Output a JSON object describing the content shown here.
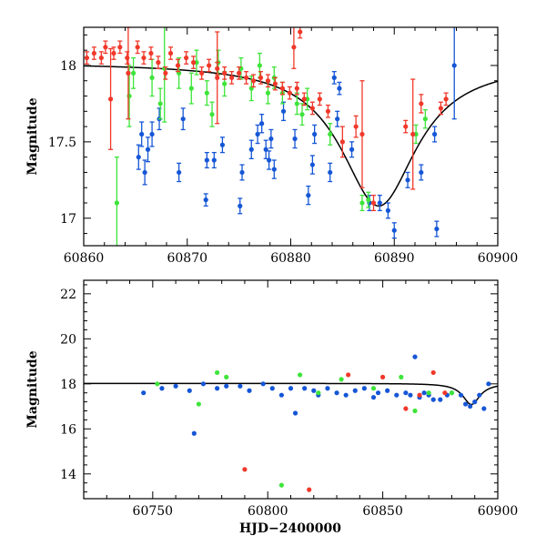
{
  "colors": {
    "blue": "#1556d6",
    "green": "#3ee43a",
    "red": "#f0382a",
    "model": "#000000"
  },
  "chart_data": [
    {
      "type": "scatter",
      "panel": "top",
      "xlabel": "",
      "ylabel": "Magnitude",
      "xlim": [
        60860,
        60900
      ],
      "ylim": [
        18.25,
        16.82
      ],
      "y_inverted": true,
      "xticks": [
        60860,
        60870,
        60880,
        60890,
        60900
      ],
      "yticks": [
        17,
        17.5,
        18
      ],
      "ytick_labels": [
        "17",
        "17.5",
        "18"
      ],
      "model": {
        "peak_x": 60888.5,
        "peak_y": 17.08,
        "baseline_y": 18.02
      },
      "series": [
        {
          "color": "blue",
          "points": [
            [
              60865.3,
              17.4,
              0.08
            ],
            [
              60865.6,
              17.55,
              0.08
            ],
            [
              60865.9,
              17.3,
              0.08
            ],
            [
              60866.2,
              17.45,
              0.08
            ],
            [
              60866.6,
              17.55,
              0.08
            ],
            [
              60867.3,
              17.65,
              0.07
            ],
            [
              60869.2,
              17.3,
              0.06
            ],
            [
              60869.6,
              17.65,
              0.07
            ],
            [
              60871.8,
              17.12,
              0.04
            ],
            [
              60871.9,
              17.38,
              0.05
            ],
            [
              60872.6,
              17.38,
              0.05
            ],
            [
              60873.4,
              17.48,
              0.05
            ],
            [
              60875.1,
              17.08,
              0.05
            ],
            [
              60875.3,
              17.3,
              0.05
            ],
            [
              60876.2,
              17.45,
              0.06
            ],
            [
              60876.8,
              17.55,
              0.06
            ],
            [
              60877.2,
              17.62,
              0.06
            ],
            [
              60877.6,
              17.45,
              0.06
            ],
            [
              60877.9,
              17.38,
              0.06
            ],
            [
              60878.1,
              17.52,
              0.06
            ],
            [
              60878.4,
              17.32,
              0.06
            ],
            [
              60879.3,
              17.7,
              0.06
            ],
            [
              60880.4,
              17.52,
              0.06
            ],
            [
              60881.7,
              17.15,
              0.06
            ],
            [
              60882.1,
              17.35,
              0.06
            ],
            [
              60882.3,
              17.55,
              0.06
            ],
            [
              60883.8,
              17.3,
              0.06
            ],
            [
              60884.2,
              17.92,
              0.04
            ],
            [
              60884.5,
              17.65,
              0.05
            ],
            [
              60884.7,
              17.85,
              0.04
            ],
            [
              60885.9,
              17.45,
              0.05
            ],
            [
              60887.6,
              17.1,
              0.05
            ],
            [
              60888.6,
              17.1,
              0.05
            ],
            [
              60889.4,
              17.05,
              0.05
            ],
            [
              60890.0,
              16.92,
              0.05
            ],
            [
              60891.3,
              17.25,
              0.05
            ],
            [
              60892.6,
              17.3,
              0.05
            ],
            [
              60893.9,
              17.55,
              0.05
            ],
            [
              60894.1,
              16.93,
              0.05
            ],
            [
              60895.8,
              18.0,
              0.35
            ]
          ]
        },
        {
          "color": "green",
          "points": [
            [
              60863.2,
              17.1,
              0.3
            ],
            [
              60864.4,
              17.8,
              0.2
            ],
            [
              60864.8,
              17.95,
              0.1
            ],
            [
              60866.6,
              17.92,
              0.12
            ],
            [
              60867.4,
              17.75,
              0.1
            ],
            [
              60867.8,
              17.98,
              0.35
            ],
            [
              60869.2,
              17.95,
              0.1
            ],
            [
              60870.4,
              17.85,
              0.1
            ],
            [
              60870.9,
              18.02,
              0.08
            ],
            [
              60871.9,
              17.82,
              0.08
            ],
            [
              60872.4,
              17.68,
              0.08
            ],
            [
              60873.0,
              18.02,
              0.08
            ],
            [
              60873.6,
              17.88,
              0.08
            ],
            [
              60875.2,
              17.98,
              0.07
            ],
            [
              60876.2,
              17.85,
              0.08
            ],
            [
              60877.0,
              18.0,
              0.08
            ],
            [
              60877.8,
              17.82,
              0.07
            ],
            [
              60878.4,
              17.92,
              0.07
            ],
            [
              60879.2,
              17.82,
              0.07
            ],
            [
              60880.6,
              17.75,
              0.07
            ],
            [
              60881.1,
              17.68,
              0.07
            ],
            [
              60881.6,
              17.78,
              0.07
            ],
            [
              60883.8,
              17.55,
              0.07
            ],
            [
              60886.9,
              17.1,
              0.05
            ],
            [
              60887.5,
              17.12,
              0.05
            ],
            [
              60892.1,
              17.55,
              0.06
            ],
            [
              60893.0,
              17.65,
              0.06
            ]
          ]
        },
        {
          "color": "red",
          "points": [
            [
              60860.3,
              18.05,
              0.04
            ],
            [
              60861.0,
              18.08,
              0.04
            ],
            [
              60861.7,
              18.05,
              0.04
            ],
            [
              60862.1,
              18.12,
              0.04
            ],
            [
              60862.9,
              18.08,
              0.04
            ],
            [
              60863.5,
              18.12,
              0.04
            ],
            [
              60864.2,
              18.05,
              0.04
            ],
            [
              60865.2,
              18.12,
              0.04
            ],
            [
              60865.8,
              18.05,
              0.04
            ],
            [
              60866.5,
              18.08,
              0.04
            ],
            [
              60867.2,
              18.02,
              0.04
            ],
            [
              60867.9,
              17.95,
              0.04
            ],
            [
              60868.4,
              18.08,
              0.04
            ],
            [
              60869.1,
              18.0,
              0.04
            ],
            [
              60869.9,
              18.05,
              0.04
            ],
            [
              60870.6,
              18.02,
              0.04
            ],
            [
              60871.4,
              17.95,
              0.04
            ],
            [
              60872.1,
              18.0,
              0.04
            ],
            [
              60872.9,
              17.98,
              0.04
            ],
            [
              60873.6,
              17.95,
              0.04
            ],
            [
              60874.3,
              17.92,
              0.04
            ],
            [
              60875.0,
              17.95,
              0.04
            ],
            [
              60875.7,
              17.92,
              0.04
            ],
            [
              60876.4,
              17.9,
              0.04
            ],
            [
              60877.1,
              17.92,
              0.04
            ],
            [
              60877.8,
              17.9,
              0.04
            ],
            [
              60878.5,
              17.88,
              0.04
            ],
            [
              60879.2,
              17.85,
              0.04
            ],
            [
              60879.9,
              17.82,
              0.04
            ],
            [
              60880.6,
              17.85,
              0.04
            ],
            [
              60881.3,
              17.78,
              0.04
            ],
            [
              60882.1,
              17.72,
              0.04
            ],
            [
              60882.8,
              17.78,
              0.04
            ],
            [
              60883.6,
              17.7,
              0.04
            ],
            [
              60862.6,
              17.78,
              0.33
            ],
            [
              60864.3,
              17.95,
              0.3
            ],
            [
              60872.9,
              17.92,
              0.3
            ],
            [
              60880.3,
              18.12,
              0.14
            ],
            [
              60880.9,
              18.22,
              0.04
            ],
            [
              60885.0,
              17.5,
              0.1
            ],
            [
              60886.3,
              17.6,
              0.07
            ],
            [
              60886.9,
              17.55,
              0.35
            ],
            [
              60888.0,
              17.1,
              0.05
            ],
            [
              60891.1,
              17.6,
              0.04
            ],
            [
              60891.8,
              17.55,
              0.36
            ],
            [
              60892.6,
              17.75,
              0.06
            ],
            [
              60894.5,
              17.72,
              0.04
            ],
            [
              60895.0,
              17.78,
              0.04
            ]
          ]
        }
      ]
    },
    {
      "type": "scatter",
      "panel": "bottom",
      "xlabel": "HJD−2400000",
      "ylabel": "Magnitude",
      "xlim": [
        60720,
        60900
      ],
      "ylim": [
        22.6,
        12.9
      ],
      "y_inverted": true,
      "xticks": [
        60750,
        60800,
        60850,
        60900
      ],
      "yticks": [
        14,
        16,
        18,
        20,
        22
      ],
      "ytick_labels": [
        "14",
        "16",
        "18",
        "20",
        "22"
      ],
      "model": {
        "peak_x": 60888.5,
        "peak_y": 17.08,
        "baseline_y": 18.02
      },
      "series": [
        {
          "color": "blue",
          "points": [
            [
              60746,
              17.6
            ],
            [
              60754,
              17.8
            ],
            [
              60760,
              17.9
            ],
            [
              60766,
              17.7
            ],
            [
              60768,
              15.8
            ],
            [
              60772,
              18.0
            ],
            [
              60778,
              17.8
            ],
            [
              60782,
              17.9
            ],
            [
              60788,
              17.9
            ],
            [
              60792,
              17.7
            ],
            [
              60798,
              18.0
            ],
            [
              60802,
              17.8
            ],
            [
              60806,
              17.5
            ],
            [
              60810,
              17.8
            ],
            [
              60812,
              16.7
            ],
            [
              60816,
              17.8
            ],
            [
              60820,
              17.7
            ],
            [
              60822,
              17.5
            ],
            [
              60826,
              17.8
            ],
            [
              60830,
              17.6
            ],
            [
              60834,
              17.5
            ],
            [
              60838,
              17.7
            ],
            [
              60842,
              17.8
            ],
            [
              60846,
              17.4
            ],
            [
              60848,
              17.6
            ],
            [
              60852,
              17.7
            ],
            [
              60856,
              17.5
            ],
            [
              60860,
              17.6
            ],
            [
              60862,
              17.5
            ],
            [
              60864,
              19.2
            ],
            [
              60866,
              17.4
            ],
            [
              60868,
              17.6
            ],
            [
              60870,
              17.5
            ],
            [
              60872,
              17.3
            ],
            [
              60875,
              17.3
            ],
            [
              60878,
              17.5
            ],
            [
              60880,
              17.6
            ],
            [
              60884,
              17.5
            ],
            [
              60886,
              17.1
            ],
            [
              60888,
              17.0
            ],
            [
              60890,
              17.2
            ],
            [
              60892,
              17.5
            ],
            [
              60894,
              16.9
            ],
            [
              60896,
              18.0
            ]
          ]
        },
        {
          "color": "green",
          "points": [
            [
              60752,
              18.0
            ],
            [
              60770,
              17.1
            ],
            [
              60778,
              18.5
            ],
            [
              60782,
              18.3
            ],
            [
              60806,
              13.5
            ],
            [
              60814,
              18.4
            ],
            [
              60822,
              17.6
            ],
            [
              60832,
              18.2
            ],
            [
              60846,
              17.8
            ],
            [
              60858,
              18.3
            ],
            [
              60864,
              16.8
            ],
            [
              60870,
              17.6
            ],
            [
              60880,
              17.6
            ]
          ]
        },
        {
          "color": "red",
          "points": [
            [
              60790,
              14.2
            ],
            [
              60818,
              13.3
            ],
            [
              60860,
              16.9
            ],
            [
              60866,
              17.5
            ],
            [
              60877,
              17.6
            ],
            [
              60872,
              18.5
            ],
            [
              60850,
              18.3
            ],
            [
              60835,
              18.4
            ]
          ]
        }
      ]
    }
  ]
}
